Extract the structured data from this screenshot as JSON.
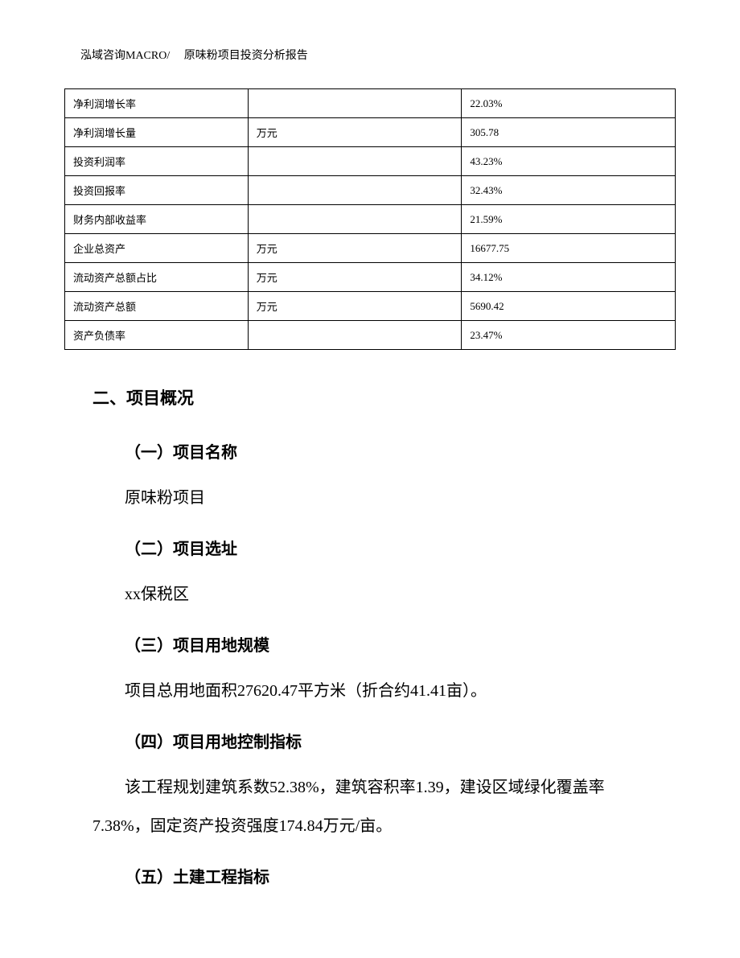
{
  "header": {
    "company": "泓域咨询MACRO/",
    "title": "原味粉项目投资分析报告"
  },
  "table": {
    "rows": [
      {
        "label": "净利润增长率",
        "unit": "",
        "value": "22.03%"
      },
      {
        "label": "净利润增长量",
        "unit": "万元",
        "value": "305.78"
      },
      {
        "label": "投资利润率",
        "unit": "",
        "value": "43.23%"
      },
      {
        "label": "投资回报率",
        "unit": "",
        "value": "32.43%"
      },
      {
        "label": "财务内部收益率",
        "unit": "",
        "value": "21.59%"
      },
      {
        "label": "企业总资产",
        "unit": "万元",
        "value": "16677.75"
      },
      {
        "label": "流动资产总额占比",
        "unit": "万元",
        "value": "34.12%"
      },
      {
        "label": "流动资产总额",
        "unit": "万元",
        "value": "5690.42"
      },
      {
        "label": "资产负债率",
        "unit": "",
        "value": "23.47%"
      }
    ]
  },
  "sections": {
    "h2": "二、项目概况",
    "s1": {
      "heading": "（一）项目名称",
      "text": "原味粉项目"
    },
    "s2": {
      "heading": "（二）项目选址",
      "text": "xx保税区"
    },
    "s3": {
      "heading": "（三）项目用地规模",
      "text": "项目总用地面积27620.47平方米（折合约41.41亩）。"
    },
    "s4": {
      "heading": "（四）项目用地控制指标",
      "text": "该工程规划建筑系数52.38%，建筑容积率1.39，建设区域绿化覆盖率7.38%，固定资产投资强度174.84万元/亩。"
    },
    "s5": {
      "heading": "（五）土建工程指标"
    }
  }
}
